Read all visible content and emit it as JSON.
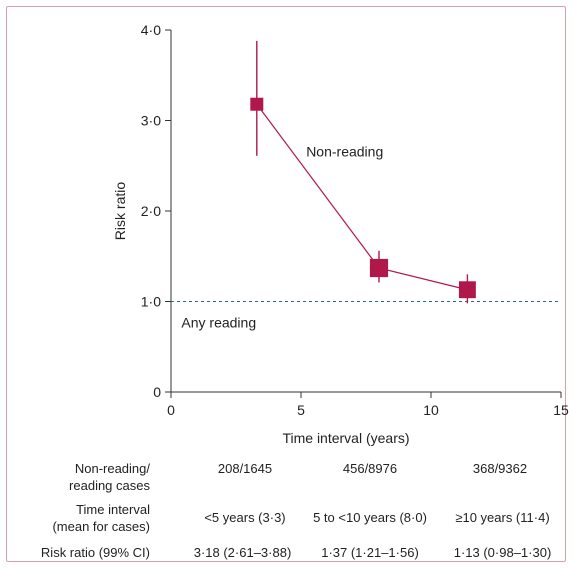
{
  "chart_data": {
    "type": "scatter",
    "xlabel": "Time interval (years)",
    "ylabel": "Risk ratio",
    "xlim": [
      0,
      15
    ],
    "ylim": [
      0,
      4
    ],
    "x_ticks": [
      0,
      5,
      10,
      15
    ],
    "x_tick_labels": [
      "0",
      "5",
      "10",
      "15"
    ],
    "y_ticks": [
      0,
      1,
      2,
      3,
      4
    ],
    "y_tick_labels": [
      "0",
      "1·0",
      "2·0",
      "3·0",
      "4·0"
    ],
    "grid": false,
    "series": [
      {
        "name": "Non-reading",
        "points": [
          {
            "x": 3.3,
            "y": 3.18,
            "ci_low": 2.61,
            "ci_high": 3.88,
            "weight": 1.0
          },
          {
            "x": 8.0,
            "y": 1.37,
            "ci_low": 1.21,
            "ci_high": 1.56,
            "weight": 1.4
          },
          {
            "x": 11.4,
            "y": 1.13,
            "ci_low": 0.98,
            "ci_high": 1.3,
            "weight": 1.3
          }
        ]
      }
    ],
    "reference_line": {
      "y": 1.0,
      "label": "Any reading",
      "style": "dashed",
      "color": "#2a6b74"
    },
    "annotations": [
      {
        "text": "Non-reading",
        "x": 5.2,
        "y": 2.6
      }
    ],
    "colors": {
      "marker": "#b0184a",
      "line": "#b0184a",
      "axis": "#333333"
    }
  },
  "table": {
    "rows": [
      {
        "label_lines": [
          "Non-reading/",
          "reading cases"
        ],
        "values": [
          "208/1645",
          "456/8976",
          "368/9362"
        ]
      },
      {
        "label_lines": [
          "Time interval",
          "(mean for cases)"
        ],
        "values": [
          "<5 years (3·3)",
          "5 to <10 years (8·0)",
          "≥10 years (11·4)"
        ]
      },
      {
        "label_lines": [
          "Risk ratio (99% CI)"
        ],
        "values": [
          "3·18 (2·61–3·88)",
          "1·37 (1·21–1·56)",
          "1·13 (0·98–1·30)"
        ]
      }
    ]
  }
}
